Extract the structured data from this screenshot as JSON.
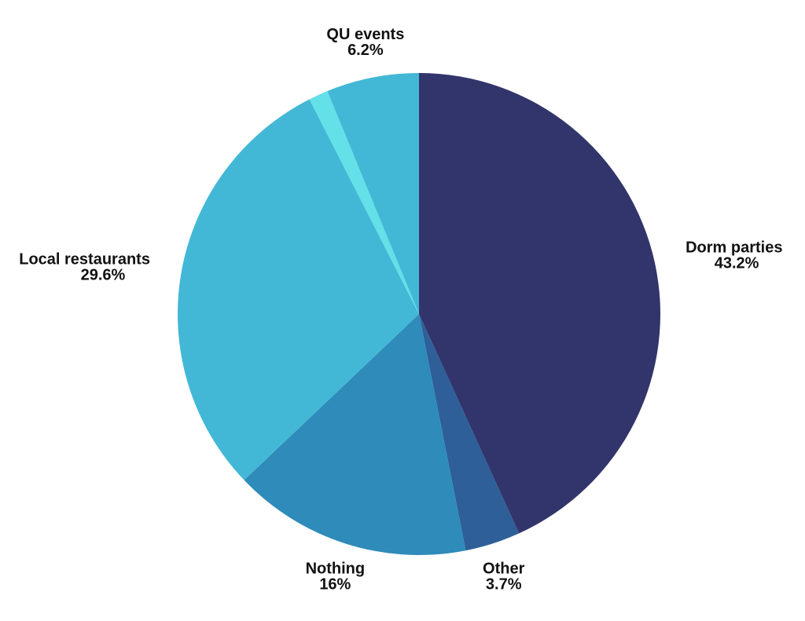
{
  "chart_data": {
    "type": "pie",
    "categories": [
      "Dorm parties",
      "Other",
      "Nothing",
      "Local restaurants",
      null,
      "QU events"
    ],
    "values": [
      43.2,
      3.7,
      16,
      29.6,
      1.3,
      6.2
    ],
    "value_labels": [
      "43.2%",
      "3.7%",
      "16%",
      "29.6%",
      null,
      "6.2%"
    ],
    "colors": [
      "#32356b",
      "#2e5f98",
      "#2e8bba",
      "#43b8d6",
      "#63e0e8",
      "#43b8d6"
    ]
  }
}
